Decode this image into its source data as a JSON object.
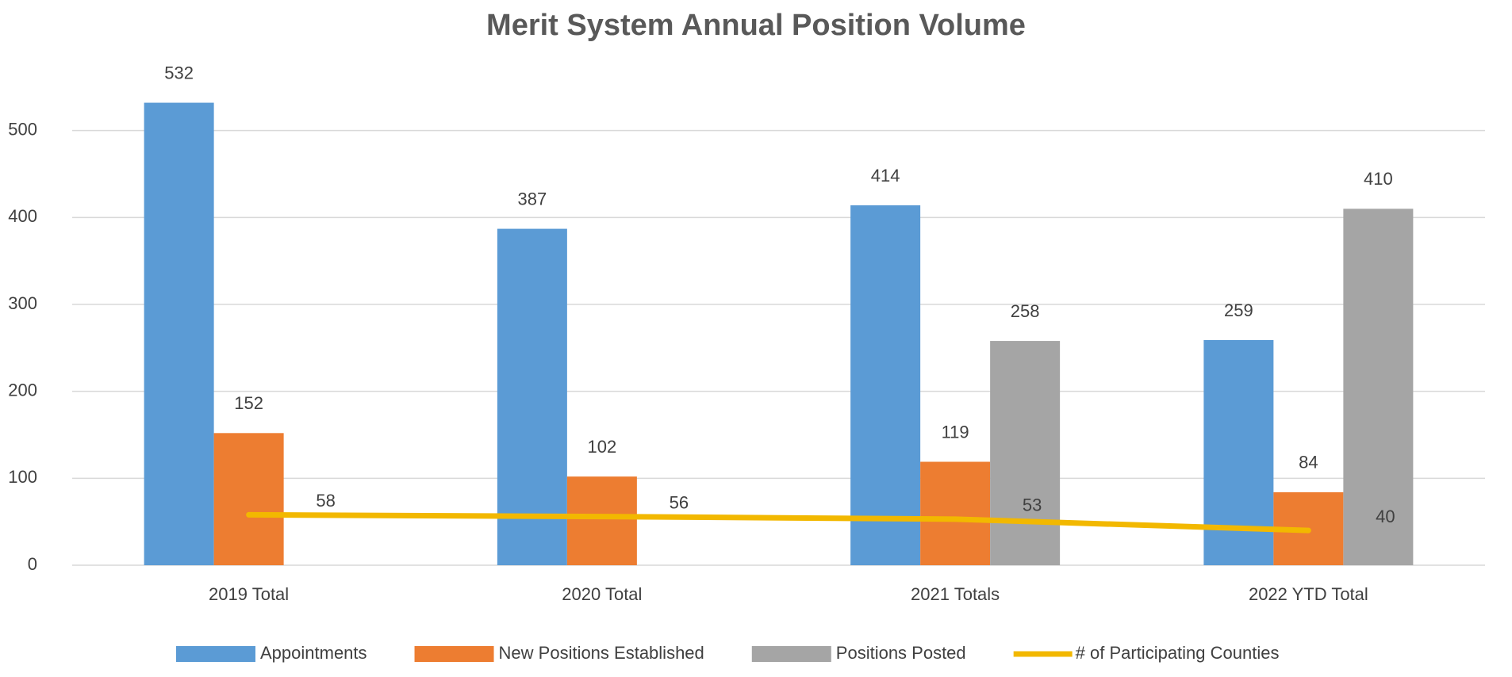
{
  "chart_data": {
    "type": "bar",
    "title": "Merit System Annual Position Volume",
    "categories": [
      "2019 Total",
      "2020 Total",
      "2021 Totals",
      "2022 YTD Total"
    ],
    "series": [
      {
        "name": "Appointments",
        "color": "#5b9bd5",
        "values": [
          532,
          387,
          414,
          259
        ]
      },
      {
        "name": "New Positions Established",
        "color": "#ed7d31",
        "values": [
          152,
          102,
          119,
          84
        ]
      },
      {
        "name": "Positions Posted",
        "color": "#a5a5a5",
        "values": [
          null,
          null,
          258,
          410
        ]
      },
      {
        "name": "# of Participating Counties",
        "color": "#f2b800",
        "type": "line",
        "values": [
          58,
          56,
          53,
          40
        ]
      }
    ],
    "ylim": [
      0,
      600
    ],
    "yticks": [
      0,
      100,
      200,
      300,
      400,
      500
    ],
    "grid": true,
    "legend": "bottom"
  }
}
